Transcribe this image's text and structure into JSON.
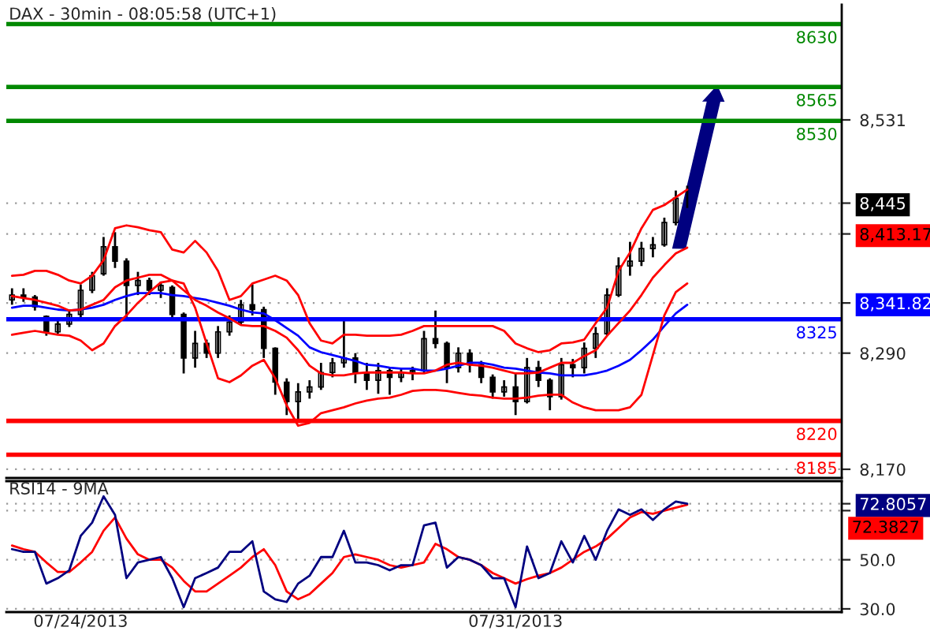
{
  "chart_data": [
    {
      "type": "candlestick",
      "title": "DAX - 30min - 08:05:58 (UTC+1)",
      "categories": [
        null,
        null,
        null,
        null,
        null,
        null,
        null,
        null,
        null,
        null,
        null,
        null,
        null,
        null,
        null,
        null,
        null,
        null,
        null,
        null,
        null,
        null,
        null,
        null,
        null,
        null,
        null,
        null,
        null,
        null,
        null,
        null,
        null,
        null,
        null,
        null,
        null,
        null,
        null,
        null,
        null,
        null,
        null,
        null,
        null,
        null,
        null,
        null,
        null,
        null,
        null,
        null,
        null,
        null,
        null,
        null,
        null,
        null,
        null,
        null,
        null,
        null,
        null,
        null,
        null,
        null,
        null,
        null,
        null,
        null,
        null,
        null,
        null
      ],
      "ohlc": [
        [
          8345,
          8357,
          8340,
          8350
        ],
        [
          8350,
          8357,
          8343,
          8348
        ],
        [
          8348,
          8350,
          8334,
          8338
        ],
        [
          8328,
          8329,
          8308,
          8312
        ],
        [
          8312,
          8324,
          8310,
          8320
        ],
        [
          8320,
          8334,
          8317,
          8330
        ],
        [
          8330,
          8361,
          8324,
          8355
        ],
        [
          8355,
          8374,
          8352,
          8370
        ],
        [
          8372,
          8410,
          8370,
          8400
        ],
        [
          8400,
          8415,
          8378,
          8385
        ],
        [
          8385,
          8388,
          8324,
          8360
        ],
        [
          8360,
          8374,
          8350,
          8365
        ],
        [
          8365,
          8368,
          8350,
          8355
        ],
        [
          8355,
          8364,
          8347,
          8360
        ],
        [
          8358,
          8360,
          8324,
          8330
        ],
        [
          8330,
          8332,
          8269,
          8285
        ],
        [
          8285,
          8313,
          8275,
          8300
        ],
        [
          8300,
          8304,
          8285,
          8290
        ],
        [
          8290,
          8318,
          8285,
          8312
        ],
        [
          8312,
          8329,
          8308,
          8322
        ],
        [
          8322,
          8345,
          8320,
          8340
        ],
        [
          8340,
          8361,
          8329,
          8335
        ],
        [
          8335,
          8338,
          8285,
          8295
        ],
        [
          8295,
          8296,
          8247,
          8260
        ],
        [
          8260,
          8264,
          8226,
          8240
        ],
        [
          8240,
          8259,
          8220,
          8250
        ],
        [
          8250,
          8262,
          8243,
          8255
        ],
        [
          8255,
          8280,
          8252,
          8270
        ],
        [
          8270,
          8285,
          8265,
          8280
        ],
        [
          8280,
          8324,
          8275,
          8285
        ],
        [
          8285,
          8290,
          8259,
          8270
        ],
        [
          8270,
          8280,
          8252,
          8262
        ],
        [
          8262,
          8280,
          8248,
          8272
        ],
        [
          8272,
          8275,
          8247,
          8265
        ],
        [
          8265,
          8275,
          8260,
          8270
        ],
        [
          8270,
          8276,
          8262,
          8272
        ],
        [
          8272,
          8313,
          8270,
          8305
        ],
        [
          8305,
          8334,
          8295,
          8300
        ],
        [
          8300,
          8302,
          8259,
          8275
        ],
        [
          8275,
          8296,
          8270,
          8290
        ],
        [
          8290,
          8294,
          8270,
          8278
        ],
        [
          8278,
          8282,
          8259,
          8265
        ],
        [
          8265,
          8268,
          8243,
          8250
        ],
        [
          8250,
          8262,
          8245,
          8255
        ],
        [
          8255,
          8269,
          8226,
          8240
        ],
        [
          8240,
          8285,
          8238,
          8275
        ],
        [
          8275,
          8282,
          8255,
          8262
        ],
        [
          8262,
          8264,
          8231,
          8245
        ],
        [
          8245,
          8285,
          8242,
          8278
        ],
        [
          8278,
          8284,
          8265,
          8275
        ],
        [
          8275,
          8301,
          8269,
          8295
        ],
        [
          8295,
          8317,
          8285,
          8310
        ],
        [
          8310,
          8357,
          8308,
          8350
        ],
        [
          8350,
          8389,
          8348,
          8380
        ],
        [
          8380,
          8405,
          8370,
          8385
        ],
        [
          8385,
          8405,
          8380,
          8398
        ],
        [
          8398,
          8410,
          8389,
          8402
        ],
        [
          8402,
          8430,
          8400,
          8425
        ],
        [
          8425,
          8458,
          8422,
          8450
        ],
        [
          8450,
          8463,
          8440,
          8445
        ],
        null,
        null,
        null,
        null,
        null,
        null,
        null,
        null,
        null,
        null,
        null,
        null,
        null
      ],
      "series": [
        {
          "type": "line",
          "color": "#ff0000",
          "values": [
            8370,
            8371,
            8375,
            8375,
            8371,
            8365,
            8362,
            8370,
            8386,
            8419,
            8422,
            8420,
            8417,
            8415,
            8397,
            8394,
            8406,
            8394,
            8375,
            8345,
            8349,
            8362,
            8366,
            8370,
            8365,
            8350,
            8321,
            8303,
            8300,
            8309,
            8309,
            8308,
            8308,
            8308,
            8309,
            8313,
            8318,
            8318,
            8318,
            8318,
            8318,
            8318,
            8318,
            8313,
            8300,
            8295,
            8291,
            8293,
            8300,
            8301,
            8304,
            8321,
            8337,
            8375,
            8394,
            8419,
            8438,
            8443,
            8451,
            8459,
            null,
            null,
            null,
            null,
            null,
            null,
            null,
            null,
            null,
            null,
            null,
            null,
            null
          ]
        },
        {
          "type": "line",
          "color": "#ff0000",
          "values": [
            8349,
            8347,
            8345,
            8342,
            8339,
            8334,
            8335,
            8340,
            8345,
            8358,
            8365,
            8368,
            8371,
            8371,
            8365,
            8355,
            8345,
            8339,
            8332,
            8326,
            8319,
            8318,
            8318,
            8313,
            8306,
            8293,
            8277,
            8269,
            8267,
            8267,
            8269,
            8270,
            8270,
            8270,
            8270,
            8269,
            8269,
            8272,
            8278,
            8280,
            8278,
            8277,
            8275,
            8272,
            8269,
            8269,
            8270,
            8275,
            8280,
            8280,
            8287,
            8293,
            8308,
            8321,
            8334,
            8350,
            8368,
            8381,
            8393,
            8399,
            null,
            null,
            null,
            null,
            null,
            null,
            null,
            null,
            null,
            null,
            null,
            null,
            null
          ]
        },
        {
          "type": "line",
          "color": "#ff0000",
          "values": [
            8309,
            8311,
            8313,
            8311,
            8309,
            8308,
            8303,
            8293,
            8300,
            8318,
            8329,
            8342,
            8353,
            8363,
            8365,
            8362,
            8337,
            8300,
            8264,
            8260,
            8267,
            8277,
            8283,
            8264,
            8236,
            8215,
            8218,
            8228,
            8231,
            8234,
            8238,
            8241,
            8243,
            8244,
            8247,
            8251,
            8252,
            8252,
            8251,
            8249,
            8247,
            8246,
            8244,
            8243,
            8243,
            8244,
            8246,
            8247,
            8247,
            8239,
            8234,
            8231,
            8231,
            8231,
            8234,
            8247,
            8288,
            8329,
            8353,
            8362,
            null,
            null,
            null,
            null,
            null,
            null,
            null,
            null,
            null,
            null,
            null,
            null,
            null
          ]
        },
        {
          "type": "line",
          "color": "#0000ff",
          "values": [
            8337,
            8339,
            8339,
            8337,
            8335,
            8334,
            8335,
            8337,
            8340,
            8345,
            8349,
            8352,
            8352,
            8352,
            8350,
            8349,
            8347,
            8345,
            8342,
            8339,
            8335,
            8332,
            8331,
            8324,
            8316,
            8308,
            8296,
            8291,
            8288,
            8285,
            8282,
            8278,
            8277,
            8275,
            8274,
            8274,
            8272,
            8272,
            8274,
            8277,
            8280,
            8280,
            8278,
            8275,
            8274,
            8272,
            8270,
            8269,
            8267,
            8267,
            8267,
            8269,
            8272,
            8277,
            8283,
            8293,
            8304,
            8318,
            8331,
            8340,
            null,
            null,
            null,
            null,
            null,
            null,
            null,
            null,
            null,
            null,
            null,
            null,
            null
          ]
        }
      ],
      "ref_lines": [
        {
          "axis": "y",
          "value": 8630,
          "label": "8630",
          "color": "#008800"
        },
        {
          "axis": "y",
          "value": 8565,
          "label": "8565",
          "color": "#008800"
        },
        {
          "axis": "y",
          "value": 8530,
          "label": "8530",
          "color": "#008800"
        },
        {
          "axis": "y",
          "value": 8325,
          "label": "8325",
          "color": "#0000ff"
        },
        {
          "axis": "y",
          "value": 8220,
          "label": "8220",
          "color": "#ff0000"
        },
        {
          "axis": "y",
          "value": 8185,
          "label": "8185",
          "color": "#ff0000"
        }
      ],
      "ylim": [
        8161,
        8650
      ],
      "yticks": [
        {
          "value": 8531,
          "label": "8,531"
        },
        {
          "value": 8445,
          "label": "8,445"
        },
        {
          "value": 8413.17,
          "label": "8,413.17"
        },
        {
          "value": 8341.82,
          "label": "8,341.82"
        },
        {
          "value": 8290,
          "label": "8,290"
        },
        {
          "value": 8170,
          "label": "8,170"
        }
      ],
      "grid": "y",
      "tick_labels": "y"
    },
    {
      "type": "line",
      "title": "RSI14 - 9MA",
      "categories": [
        null,
        null,
        null,
        null,
        null,
        null,
        "07/24/2013",
        null,
        null,
        null,
        null,
        null,
        null,
        null,
        null,
        null,
        null,
        null,
        null,
        null,
        null,
        null,
        null,
        null,
        null,
        null,
        null,
        null,
        null,
        null,
        null,
        null,
        null,
        null,
        null,
        null,
        null,
        null,
        null,
        null,
        null,
        null,
        null,
        null,
        "07/31/2013",
        null,
        null,
        null,
        null,
        null,
        null,
        null,
        null,
        null,
        null,
        null,
        null,
        null,
        null,
        null,
        null,
        null,
        null,
        null,
        null,
        null,
        null,
        null,
        null,
        null,
        null,
        null,
        null
      ],
      "series": [
        {
          "color": "#000080",
          "values": [
            54.3,
            53.2,
            53.2,
            40.3,
            42.5,
            45.7,
            59.7,
            65.1,
            75.8,
            68.3,
            42.5,
            48.9,
            50,
            51.1,
            42.5,
            30.7,
            42.5,
            44.6,
            46.8,
            53.2,
            53.2,
            57.5,
            37.1,
            33.9,
            32.8,
            40.3,
            43.5,
            51.1,
            51.1,
            61.8,
            48.9,
            48.9,
            47.8,
            45.7,
            47.8,
            47.8,
            64.0,
            65.1,
            46.8,
            51.1,
            50,
            47.8,
            42.5,
            42.5,
            30.7,
            55.4,
            42.5,
            44.6,
            57.5,
            48.9,
            59.7,
            50,
            61.8,
            70.5,
            68.3,
            70.5,
            66.2,
            70.5,
            73.7,
            72.8,
            null,
            null,
            null,
            null,
            null,
            null,
            null,
            null,
            null,
            null,
            null,
            null,
            null
          ]
        },
        {
          "color": "#ff0000",
          "values": [
            55.8,
            54.3,
            53.2,
            48.9,
            45.0,
            45.0,
            48.9,
            53.2,
            61.8,
            67.2,
            58.6,
            52.2,
            50,
            50,
            46.8,
            41.4,
            37.1,
            37.1,
            40.3,
            43.5,
            46.8,
            51.1,
            54.3,
            47.8,
            37.1,
            33.9,
            36.0,
            40.3,
            44.6,
            51.1,
            52.2,
            51.1,
            50,
            47.8,
            46.8,
            47.8,
            48.9,
            56.5,
            54.3,
            51.1,
            50,
            47.8,
            44.6,
            42.5,
            40.3,
            42.1,
            43.5,
            44.6,
            46.8,
            50,
            53.2,
            55.4,
            58.6,
            62.9,
            67.2,
            69.4,
            68.7,
            70.0,
            71.2,
            72.4,
            null,
            null,
            null,
            null,
            null,
            null,
            null,
            null,
            null,
            null,
            null,
            null,
            null
          ]
        }
      ],
      "ylim": [
        28.7,
        82
      ],
      "yticks": [
        {
          "value": 72.8057,
          "label": "72.8057"
        },
        {
          "value": 70,
          "label": null
        },
        {
          "value": 50,
          "label": "50.0"
        },
        {
          "value": 30,
          "label": "30.0"
        }
      ],
      "annotations": [
        "72.3827"
      ],
      "grid": "y"
    }
  ]
}
